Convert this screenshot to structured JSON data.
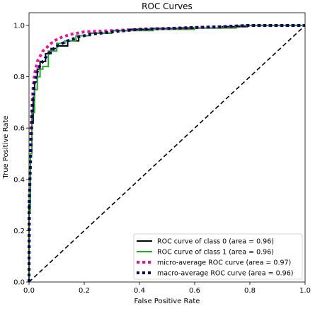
{
  "chart_data": {
    "type": "line",
    "title": "ROC Curves",
    "xlabel": "False Positive Rate",
    "ylabel": "True Positive Rate",
    "xlim": [
      0,
      1
    ],
    "ylim": [
      0,
      1
    ],
    "xticks": [
      "0.0",
      "0.2",
      "0.4",
      "0.6",
      "0.8",
      "1.0"
    ],
    "yticks": [
      "0.0",
      "0.2",
      "0.4",
      "0.6",
      "0.8",
      "1.0"
    ],
    "grid": false,
    "legend_position": "lower-right",
    "series": [
      {
        "name": "ROC curve of class 0 (area = 0.96)",
        "color": "#000000",
        "style": "solid",
        "x": [
          0.0,
          0.0,
          0.005,
          0.005,
          0.01,
          0.01,
          0.015,
          0.015,
          0.02,
          0.02,
          0.03,
          0.03,
          0.04,
          0.04,
          0.06,
          0.06,
          0.08,
          0.08,
          0.1,
          0.1,
          0.14,
          0.14,
          0.18,
          0.18,
          0.22,
          0.22,
          0.3,
          0.3,
          0.36,
          0.36,
          0.45,
          0.45,
          0.55,
          0.55,
          0.7,
          0.7,
          0.79,
          0.79,
          1.0
        ],
        "y": [
          0.0,
          0.3,
          0.3,
          0.5,
          0.5,
          0.62,
          0.62,
          0.72,
          0.72,
          0.78,
          0.78,
          0.83,
          0.83,
          0.86,
          0.86,
          0.89,
          0.89,
          0.91,
          0.91,
          0.92,
          0.92,
          0.94,
          0.94,
          0.96,
          0.96,
          0.97,
          0.97,
          0.98,
          0.98,
          0.985,
          0.985,
          0.988,
          0.988,
          0.99,
          0.99,
          0.995,
          0.995,
          1.0,
          1.0
        ]
      },
      {
        "name": "ROC curve of class 1 (area = 0.96)",
        "color": "#22aa22",
        "style": "solid",
        "x": [
          0.0,
          0.0,
          0.005,
          0.005,
          0.01,
          0.01,
          0.02,
          0.02,
          0.03,
          0.03,
          0.04,
          0.04,
          0.05,
          0.05,
          0.07,
          0.07,
          0.1,
          0.1,
          0.13,
          0.13,
          0.17,
          0.17,
          0.22,
          0.22,
          0.3,
          0.3,
          0.45,
          0.45,
          0.6,
          0.6,
          0.75,
          0.75,
          1.0
        ],
        "y": [
          0.0,
          0.28,
          0.28,
          0.5,
          0.5,
          0.66,
          0.66,
          0.75,
          0.75,
          0.8,
          0.8,
          0.83,
          0.83,
          0.84,
          0.84,
          0.9,
          0.9,
          0.93,
          0.93,
          0.94,
          0.94,
          0.96,
          0.96,
          0.97,
          0.97,
          0.98,
          0.98,
          0.985,
          0.985,
          0.99,
          0.99,
          1.0,
          1.0
        ]
      },
      {
        "name": "micro-average ROC curve (area = 0.97)",
        "color": "#ee1199",
        "style": "dotted",
        "x": [
          0.0,
          0.003,
          0.006,
          0.01,
          0.015,
          0.02,
          0.03,
          0.04,
          0.05,
          0.07,
          0.09,
          0.12,
          0.15,
          0.2,
          0.3,
          0.4,
          0.5,
          0.6,
          0.7,
          0.8,
          1.0
        ],
        "y": [
          0.0,
          0.4,
          0.58,
          0.68,
          0.76,
          0.81,
          0.86,
          0.88,
          0.9,
          0.92,
          0.94,
          0.955,
          0.965,
          0.975,
          0.98,
          0.985,
          0.988,
          0.992,
          0.995,
          1.0,
          1.0
        ]
      },
      {
        "name": "macro-average ROC curve (area = 0.96)",
        "color": "#000066",
        "style": "dotted",
        "x": [
          0.0,
          0.0,
          0.005,
          0.01,
          0.015,
          0.02,
          0.03,
          0.04,
          0.05,
          0.07,
          0.09,
          0.11,
          0.14,
          0.18,
          0.22,
          0.3,
          0.4,
          0.5,
          0.6,
          0.7,
          0.79,
          1.0
        ],
        "y": [
          0.0,
          0.29,
          0.45,
          0.62,
          0.72,
          0.78,
          0.82,
          0.845,
          0.86,
          0.89,
          0.91,
          0.925,
          0.94,
          0.955,
          0.965,
          0.975,
          0.985,
          0.988,
          0.992,
          0.995,
          1.0,
          1.0
        ]
      },
      {
        "name": "",
        "color": "#000000",
        "style": "dashed",
        "x": [
          0,
          1
        ],
        "y": [
          0,
          1
        ]
      }
    ]
  }
}
